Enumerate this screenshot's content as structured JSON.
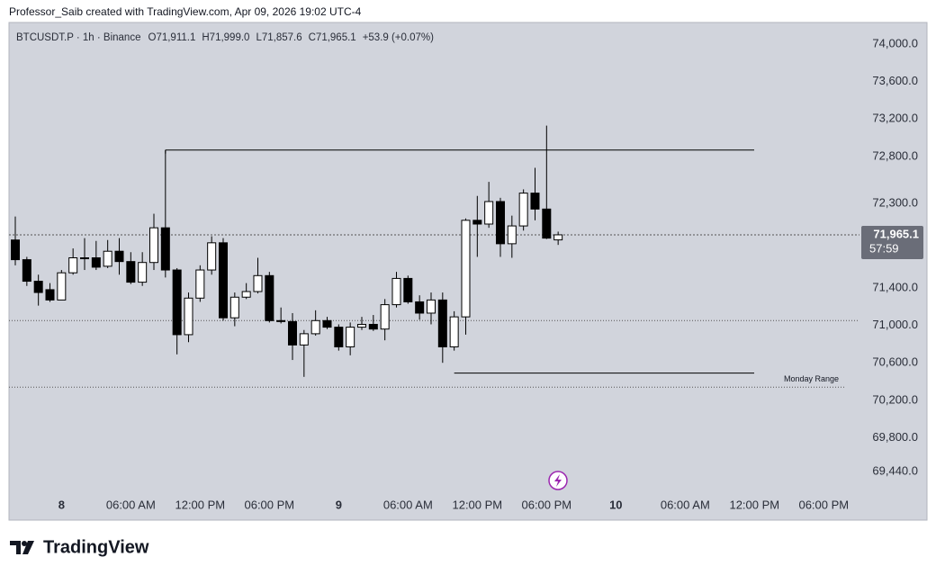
{
  "header": "Professor_Saib created with TradingView.com, Apr 09, 2026 19:02 UTC-4",
  "footer_brand": "TradingView",
  "chart_data": {
    "type": "candlestick",
    "symbol": "BTCUSDT.P · 1h · Binance",
    "ohlc_legend": [
      {
        "key": "O",
        "value": "71,911.1"
      },
      {
        "key": "H",
        "value": "71,999.0"
      },
      {
        "key": "L",
        "value": "71,857.6"
      },
      {
        "key": "C",
        "value": "71,965.1"
      }
    ],
    "change": "+53.9 (+0.07%)",
    "categories": [
      null,
      null,
      null,
      null,
      "8",
      null,
      null,
      null,
      null,
      null,
      "06:00 AM",
      null,
      null,
      null,
      null,
      null,
      "12:00 PM",
      null,
      null,
      null,
      null,
      null,
      "06:00 PM",
      null,
      null,
      null,
      null,
      null,
      "9",
      null,
      null,
      null,
      null,
      null,
      "06:00 AM",
      null,
      null,
      null,
      null,
      null,
      "12:00 PM",
      null,
      null,
      null,
      null,
      null,
      "06:00 PM",
      null,
      null,
      null,
      null,
      null,
      "10",
      null,
      null,
      null,
      null,
      null,
      "06:00 AM",
      null,
      null,
      null,
      null,
      null,
      "12:00 PM",
      null,
      null,
      null,
      null,
      null,
      "06:00 PM"
    ],
    "open": [
      71910,
      71700,
      71470,
      71380,
      71270,
      71560,
      71710,
      71720,
      71630,
      71790,
      71680,
      71460,
      71670,
      72040,
      71590,
      70900,
      71290,
      71590,
      71880,
      71080,
      71300,
      71360,
      71530,
      71050,
      71040,
      70790,
      70910,
      71050,
      70980,
      70770,
      70980,
      71010,
      70960,
      71220,
      71500,
      71250,
      71130,
      71270,
      70770,
      71090,
      72120,
      72080,
      72320,
      71870,
      72060,
      72410,
      72240,
      71911.1,
      null,
      null,
      null,
      null,
      null,
      null,
      null,
      null,
      null,
      null,
      null,
      null,
      null,
      null,
      null,
      null,
      null,
      null,
      null,
      null,
      null,
      null,
      null
    ],
    "high": [
      72160,
      71730,
      71540,
      71450,
      71590,
      71820,
      71930,
      71900,
      71910,
      71930,
      71780,
      71780,
      72190,
      72870,
      71610,
      71350,
      71640,
      71950,
      71930,
      71350,
      71450,
      71720,
      71570,
      71190,
      71130,
      70950,
      71160,
      71090,
      71010,
      71030,
      71090,
      71110,
      71280,
      71570,
      71530,
      71320,
      71350,
      71350,
      71150,
      72140,
      72380,
      72530,
      72360,
      72170,
      72450,
      72680,
      73130,
      71999.0,
      null,
      null,
      null,
      null,
      null,
      null,
      null,
      null,
      null,
      null,
      null,
      null,
      null,
      null,
      null,
      null,
      null,
      null,
      null,
      null,
      null,
      null,
      null
    ],
    "low": [
      71640,
      71420,
      71210,
      71250,
      71270,
      71540,
      71590,
      71590,
      71610,
      71540,
      71440,
      71420,
      71590,
      71510,
      70690,
      70820,
      71250,
      71540,
      71050,
      70990,
      71280,
      71340,
      71030,
      71020,
      70630,
      70450,
      70890,
      70960,
      70730,
      70680,
      70950,
      70940,
      70840,
      71190,
      71230,
      71060,
      71010,
      70600,
      70730,
      70900,
      71730,
      72040,
      71730,
      71720,
      72010,
      72120,
      71920,
      71857.6,
      null,
      null,
      null,
      null,
      null,
      null,
      null,
      null,
      null,
      null,
      null,
      null,
      null,
      null,
      null,
      null,
      null,
      null,
      null,
      null,
      null,
      null,
      null
    ],
    "close": [
      71700,
      71470,
      71350,
      71270,
      71560,
      71720,
      71720,
      71620,
      71790,
      71680,
      71460,
      71670,
      72040,
      71590,
      70900,
      71290,
      71590,
      71880,
      71080,
      71300,
      71360,
      71530,
      71050,
      71040,
      70790,
      70910,
      71050,
      70980,
      70770,
      70980,
      71010,
      70960,
      71220,
      71500,
      71250,
      71130,
      71270,
      70770,
      71090,
      72120,
      72080,
      72320,
      71870,
      72060,
      72410,
      72240,
      71930,
      71965.1,
      null,
      null,
      null,
      null,
      null,
      null,
      null,
      null,
      null,
      null,
      null,
      null,
      null,
      null,
      null,
      null,
      null,
      null,
      null,
      null,
      null,
      null,
      null
    ],
    "up_color": "#ffffff",
    "down_color": "#000000",
    "wick_color": "#000000",
    "ylim": [
      69210,
      74230
    ],
    "yticks": [
      {
        "value": 74000,
        "label": "74,000.0"
      },
      {
        "value": 73600,
        "label": "73,600.0"
      },
      {
        "value": 73200,
        "label": "73,200.0"
      },
      {
        "value": 72800,
        "label": "72,800.0"
      },
      {
        "value": 72300,
        "label": "72,300.0"
      },
      {
        "value": 71400,
        "label": "71,400.0"
      },
      {
        "value": 71000,
        "label": "71,000.0"
      },
      {
        "value": 70600,
        "label": "70,600.0"
      },
      {
        "value": 70200,
        "label": "70,200.0"
      },
      {
        "value": 69800,
        "label": "69,800.0"
      },
      {
        "value": 69440,
        "label": "69,440.0"
      }
    ],
    "grid": false,
    "monday_range": {
      "label": "Monday Range",
      "high": 72870,
      "low": 70490
    },
    "dotted_levels": [
      71050,
      70340
    ],
    "price_tag": {
      "value": 71965.1,
      "label": "71,965.1",
      "countdown": "57:59"
    }
  }
}
